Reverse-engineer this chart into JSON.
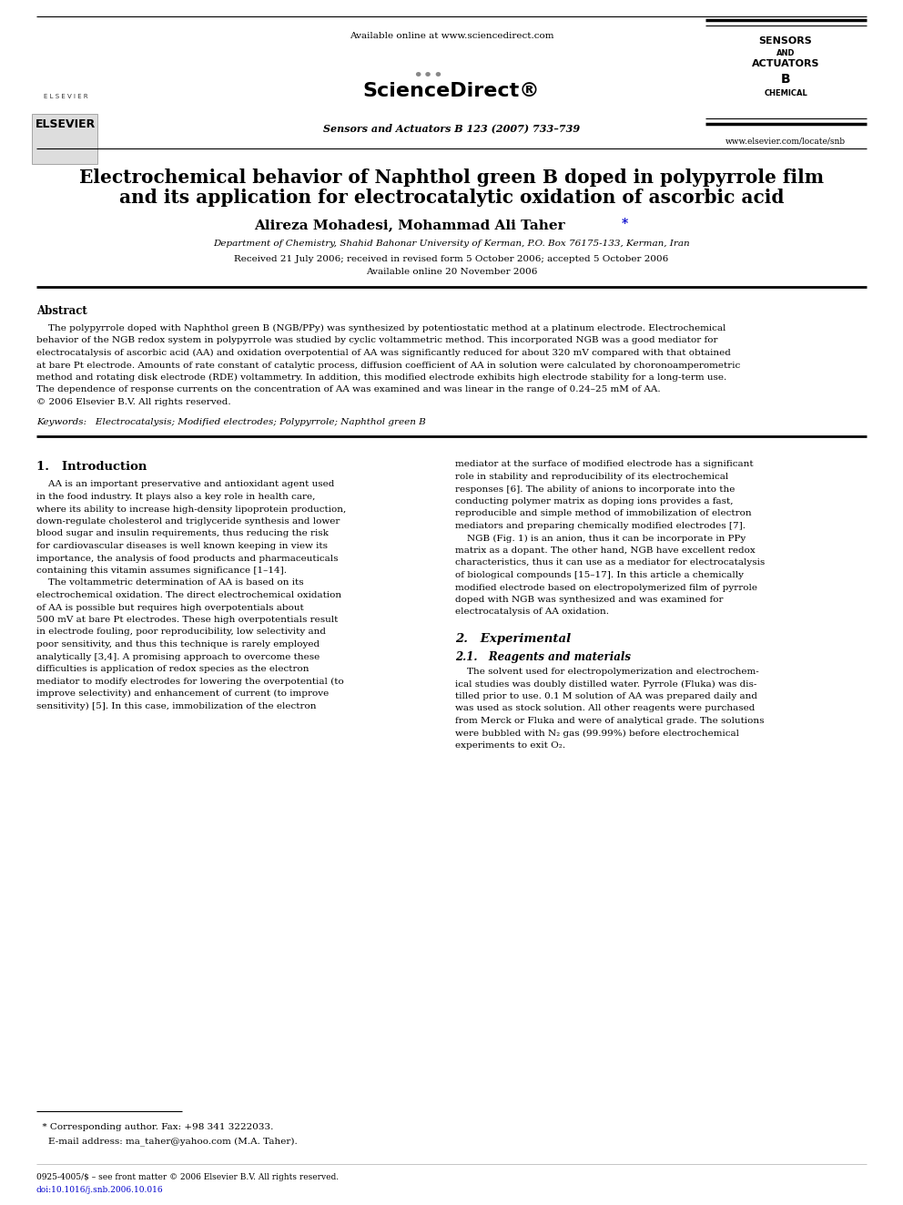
{
  "title_line1": "Electrochemical behavior of Naphthol green B doped in polypyrrole film",
  "title_line2": "and its application for electrocatalytic oxidation of ascorbic acid",
  "authors_main": "Alireza Mohadesi, Mohammad Ali Taher",
  "affiliation": "Department of Chemistry, Shahid Bahonar University of Kerman, P.O. Box 76175-133, Kerman, Iran",
  "received": "Received 21 July 2006; received in revised form 5 October 2006; accepted 5 October 2006",
  "available": "Available online 20 November 2006",
  "journal": "Sensors and Actuators B 123 (2007) 733–739",
  "sciencedirect_url": "Available online at www.sciencedirect.com",
  "elsevier_url": "www.elsevier.com/locate/snb",
  "abstract_title": "Abstract",
  "abstract_lines": [
    "    The polypyrrole doped with Naphthol green B (NGB/PPy) was synthesized by potentiostatic method at a platinum electrode. Electrochemical",
    "behavior of the NGB redox system in polypyrrole was studied by cyclic voltammetric method. This incorporated NGB was a good mediator for",
    "electrocatalysis of ascorbic acid (AA) and oxidation overpotential of AA was significantly reduced for about 320 mV compared with that obtained",
    "at bare Pt electrode. Amounts of rate constant of catalytic process, diffusion coefficient of AA in solution were calculated by choronoamperometric",
    "method and rotating disk electrode (RDE) voltammetry. In addition, this modified electrode exhibits high electrode stability for a long-term use.",
    "The dependence of response currents on the concentration of AA was examined and was linear in the range of 0.24–25 mM of AA.",
    "© 2006 Elsevier B.V. All rights reserved."
  ],
  "keywords": "Keywords:   Electrocatalysis; Modified electrodes; Polypyrrole; Naphthol green B",
  "section1_title": "1.   Introduction",
  "intro_left_lines": [
    "    AA is an important preservative and antioxidant agent used",
    "in the food industry. It plays also a key role in health care,",
    "where its ability to increase high-density lipoprotein production,",
    "down-regulate cholesterol and triglyceride synthesis and lower",
    "blood sugar and insulin requirements, thus reducing the risk",
    "for cardiovascular diseases is well known keeping in view its",
    "importance, the analysis of food products and pharmaceuticals",
    "containing this vitamin assumes significance [1–14].",
    "    The voltammetric determination of AA is based on its",
    "electrochemical oxidation. The direct electrochemical oxidation",
    "of AA is possible but requires high overpotentials about",
    "500 mV at bare Pt electrodes. These high overpotentials result",
    "in electrode fouling, poor reproducibility, low selectivity and",
    "poor sensitivity, and thus this technique is rarely employed",
    "analytically [3,4]. A promising approach to overcome these",
    "difficulties is application of redox species as the electron",
    "mediator to modify electrodes for lowering the overpotential (to",
    "improve selectivity) and enhancement of current (to improve",
    "sensitivity) [5]. In this case, immobilization of the electron"
  ],
  "intro_right_lines": [
    "mediator at the surface of modified electrode has a significant",
    "role in stability and reproducibility of its electrochemical",
    "responses [6]. The ability of anions to incorporate into the",
    "conducting polymer matrix as doping ions provides a fast,",
    "reproducible and simple method of immobilization of electron",
    "mediators and preparing chemically modified electrodes [7].",
    "    NGB (Fig. 1) is an anion, thus it can be incorporate in PPy",
    "matrix as a dopant. The other hand, NGB have excellent redox",
    "characteristics, thus it can use as a mediator for electrocatalysis",
    "of biological compounds [15–17]. In this article a chemically",
    "modified electrode based on electropolymerized film of pyrrole",
    "doped with NGB was synthesized and was examined for",
    "electrocatalysis of AA oxidation."
  ],
  "section2_title": "2.   Experimental",
  "section21_title": "2.1.   Reagents and materials",
  "exp_right_lines": [
    "    The solvent used for electropolymerization and electrochem-",
    "ical studies was doubly distilled water. Pyrrole (Fluka) was dis-",
    "tilled prior to use. 0.1 M solution of AA was prepared daily and",
    "was used as stock solution. All other reagents were purchased",
    "from Merck or Fluka and were of analytical grade. The solutions",
    "were bubbled with N₂ gas (99.99%) before electrochemical",
    "experiments to exit O₂."
  ],
  "footnote_star": "  * Corresponding author. Fax: +98 341 3222033.",
  "footnote_email": "    E-mail address: ma_taher@yahoo.com (M.A. Taher).",
  "copyright": "0925-4005/$ – see front matter © 2006 Elsevier B.V. All rights reserved.",
  "doi": "doi:10.1016/j.snb.2006.10.016",
  "bg_color": "#ffffff",
  "text_color": "#000000",
  "link_color": "#0000cc",
  "title_color": "#000000"
}
